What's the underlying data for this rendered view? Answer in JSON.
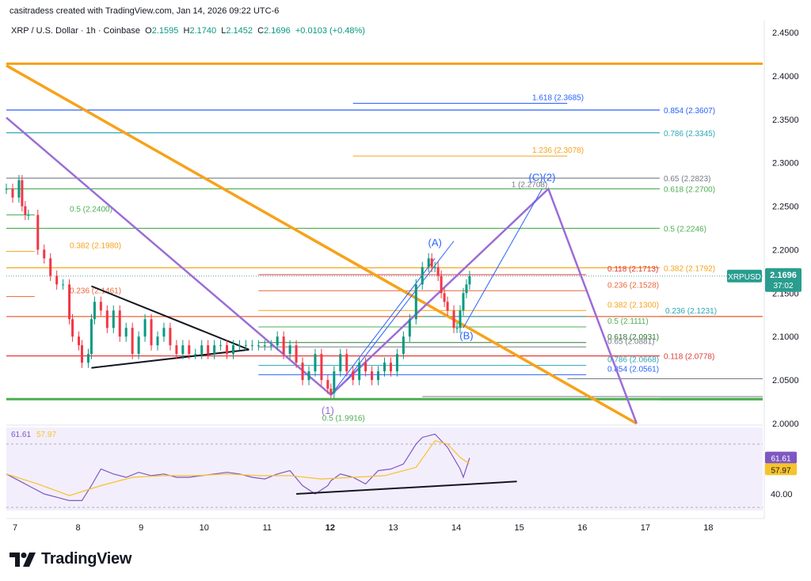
{
  "header": {
    "created_by": "casitradess created with TradingView.com, Jan 14, 2026 09:22 UTC-6"
  },
  "legend": {
    "symbol": "XRP / U.S. Dollar · 1h · Coinbase",
    "o_label": "O",
    "o": "2.1595",
    "h_label": "H",
    "h": "2.1740",
    "l_label": "L",
    "l": "2.1452",
    "c_label": "C",
    "c": "2.1696",
    "change": "+0.0103 (+0.48%)"
  },
  "brand": {
    "name": "TradingView"
  },
  "icons": {
    "logo": "tradingview-logo-icon"
  },
  "colors": {
    "up": "#089981",
    "down": "#f23645",
    "orange": "#f7a21b",
    "purple": "#9c6cd6",
    "blue": "#2962ff",
    "teal": "#2ba7b6",
    "green": "#4caf50",
    "red": "#e03b3b",
    "gray": "#787b86",
    "price_tag": "#2a9d8f",
    "rsi_line": "#7e57c2",
    "rsi_ma": "#f7c32b"
  },
  "price_tag": {
    "label": "XRPUSD",
    "price": "2.1696",
    "countdown": "37:02"
  },
  "chart_data": [
    {
      "type": "line",
      "title": "XRP / U.S. Dollar · 1h · Coinbase",
      "y_axis": {
        "ylim": [
          2.0,
          2.46
        ],
        "ticks": [
          "2.4500",
          "2.4000",
          "2.3500",
          "2.3000",
          "2.2500",
          "2.2000",
          "2.1500",
          "2.1000",
          "2.0500",
          "2.0000"
        ]
      },
      "x_axis": {
        "xlim": [
          7,
          19
        ],
        "ticks": [
          7,
          8,
          9,
          10,
          11,
          12,
          13,
          14,
          15,
          16,
          17,
          18
        ],
        "tick_labels": [
          "7",
          "8",
          "9",
          "10",
          "11",
          "12",
          "13",
          "14",
          "15",
          "16",
          "17",
          "18"
        ]
      },
      "price_series": {
        "x": [
          7.0,
          7.1,
          7.2,
          7.25,
          7.3,
          7.35,
          7.5,
          7.6,
          7.7,
          7.8,
          7.9,
          8.0,
          8.05,
          8.15,
          8.2,
          8.3,
          8.35,
          8.4,
          8.5,
          8.6,
          8.7,
          8.8,
          8.9,
          9.0,
          9.1,
          9.2,
          9.3,
          9.4,
          9.5,
          9.6,
          9.7,
          9.8,
          9.9,
          10.0,
          10.1,
          10.2,
          10.3,
          10.4,
          10.5,
          10.6,
          10.7,
          10.8,
          10.9,
          11.0,
          11.1,
          11.2,
          11.3,
          11.4,
          11.5,
          11.6,
          11.7,
          11.8,
          11.9,
          12.0,
          12.1,
          12.15,
          12.2,
          12.3,
          12.4,
          12.5,
          12.6,
          12.7,
          12.8,
          12.9,
          13.0,
          13.1,
          13.2,
          13.3,
          13.4,
          13.5,
          13.6,
          13.7,
          13.75,
          13.8,
          13.85,
          13.9,
          13.95,
          14.0,
          14.1,
          14.15,
          14.2,
          14.25,
          14.3,
          14.35
        ],
        "y": [
          2.27,
          2.26,
          2.28,
          2.25,
          2.24,
          2.24,
          2.2,
          2.19,
          2.17,
          2.16,
          2.16,
          2.12,
          2.1,
          2.09,
          2.07,
          2.08,
          2.12,
          2.14,
          2.13,
          2.11,
          2.13,
          2.1,
          2.11,
          2.08,
          2.1,
          2.12,
          2.09,
          2.1,
          2.11,
          2.09,
          2.08,
          2.09,
          2.08,
          2.08,
          2.09,
          2.08,
          2.09,
          2.09,
          2.08,
          2.09,
          2.09,
          2.09,
          2.09,
          2.09,
          2.09,
          2.09,
          2.1,
          2.08,
          2.09,
          2.07,
          2.05,
          2.06,
          2.08,
          2.05,
          2.04,
          2.035,
          2.06,
          2.08,
          2.06,
          2.05,
          2.07,
          2.06,
          2.05,
          2.06,
          2.07,
          2.06,
          2.08,
          2.1,
          2.12,
          2.16,
          2.18,
          2.19,
          2.18,
          2.18,
          2.17,
          2.15,
          2.14,
          2.13,
          2.11,
          2.11,
          2.13,
          2.15,
          2.16,
          2.1696
        ]
      },
      "horizontal_lines": [
        {
          "y": 2.414,
          "color": "#f7a21b"
        },
        {
          "y": 2.3607,
          "color": "#2962ff",
          "label": "0.854 (2.3607)"
        },
        {
          "y": 2.3345,
          "color": "#2ba7b6",
          "label": "0.786 (2.3345)"
        },
        {
          "y": 2.2823,
          "color": "#787b86",
          "label": "0.65 (2.2823)"
        },
        {
          "y": 2.27,
          "color": "#4caf50",
          "label": "0.618 (2.2700)"
        },
        {
          "y": 2.2246,
          "color": "#4caf50",
          "label": "0.5 (2.2246)"
        },
        {
          "y": 2.1792,
          "color": "#f7a21b",
          "label": "0.382 (2.1792)"
        },
        {
          "y": 2.1231,
          "color": "#e8663a"
        },
        {
          "y": 2.0778,
          "color": "#e03b3b",
          "label": "0.118 (2.0778)"
        },
        {
          "y": 2.028,
          "color": "#4caf50"
        }
      ],
      "fib_short_lines": [
        {
          "x0": 7.0,
          "x1": 7.45,
          "y": 2.24,
          "color": "#4caf50",
          "label": "0.5 (2.2400)"
        },
        {
          "x0": 7.0,
          "x1": 7.45,
          "y": 2.198,
          "color": "#f7a21b",
          "label": "0.382 (2.1980)"
        },
        {
          "x0": 7.0,
          "x1": 7.45,
          "y": 2.1461,
          "color": "#e8663a",
          "label": "0.236 (2.1461)"
        },
        {
          "x0": 12.5,
          "x1": 15.9,
          "y": 2.3685,
          "color": "#2962ff",
          "label": "1.618 (2.3685)"
        },
        {
          "x0": 12.5,
          "x1": 15.9,
          "y": 2.3078,
          "color": "#f7a21b",
          "label": "1.236 (2.3078)"
        },
        {
          "x0": 11.0,
          "x1": 16.2,
          "y": 2.1713,
          "color": "#e03b3b",
          "label": "0.118 (2.1713)"
        },
        {
          "x0": 11.0,
          "x1": 16.2,
          "y": 2.1528,
          "color": "#e8663a",
          "label": "0.236 (2.1528)"
        },
        {
          "x0": 11.0,
          "x1": 16.2,
          "y": 2.13,
          "color": "#f7a21b",
          "label": "0.382 (2.1300)"
        },
        {
          "x0": 11.0,
          "x1": 16.2,
          "y": 2.1111,
          "color": "#4caf50",
          "label": "0.5 (2.1111)"
        },
        {
          "x0": 11.0,
          "x1": 16.2,
          "y": 2.0931,
          "color": "#2e7d32",
          "label": "0.618 (2.0931)"
        },
        {
          "x0": 11.0,
          "x1": 16.2,
          "y": 2.0881,
          "color": "#787b86",
          "label": "0.65 (2.0881)"
        },
        {
          "x0": 11.0,
          "x1": 16.2,
          "y": 2.0668,
          "color": "#2ba7b6",
          "label": "0.786 (2.0668)"
        },
        {
          "x0": 11.0,
          "x1": 16.2,
          "y": 2.0561,
          "color": "#2962ff",
          "label": "0.854 (2.0561)"
        },
        {
          "x0": 13.6,
          "x1": 16.2,
          "y": 2.1231,
          "color": "#2ba7b6",
          "label": "0.236 (2.1231)"
        },
        {
          "x0": 15.9,
          "x1": 19.0,
          "y": 2.0515,
          "color": "#787b86"
        },
        {
          "x0": 13.6,
          "x1": 19.0,
          "y": 2.031,
          "color": "#787b86"
        }
      ],
      "orange_trend": {
        "x": [
          7.0,
          17.0
        ],
        "y": [
          2.412,
          2.0
        ]
      },
      "purple_channel": {
        "x": [
          7.0,
          12.15
        ],
        "y": [
          2.352,
          2.033
        ]
      },
      "purple_projection": {
        "x": [
          12.15,
          15.6,
          17.0
        ],
        "y": [
          2.033,
          2.27,
          2.0
        ]
      },
      "blue_channel": [
        {
          "x": [
            12.15,
            13.8
          ],
          "y": [
            2.033,
            2.19
          ]
        },
        {
          "x": [
            12.4,
            14.1
          ],
          "y": [
            2.05,
            2.21
          ]
        },
        {
          "x": [
            14.25,
            15.5
          ],
          "y": [
            2.11,
            2.27
          ]
        }
      ],
      "triangle": {
        "top": {
          "x": [
            8.35,
            10.85
          ],
          "y": [
            2.158,
            2.085
          ]
        },
        "bottom": {
          "x": [
            8.35,
            10.85
          ],
          "y": [
            2.064,
            2.085
          ]
        }
      },
      "annotations": [
        {
          "text": "(1)",
          "x": 12.1,
          "y": 2.011,
          "color": "#9c6cd6"
        },
        {
          "text": "0.5 (1.9916)",
          "x": 12.35,
          "y": 2.003,
          "color": "#4caf50"
        },
        {
          "text": "(A)",
          "x": 13.8,
          "y": 2.204,
          "color": "#2962ff"
        },
        {
          "text": "(B)",
          "x": 14.3,
          "y": 2.097,
          "color": "#2962ff"
        },
        {
          "text": "(C)(2)",
          "x": 15.5,
          "y": 2.279,
          "color": "#2962ff"
        },
        {
          "text": "1 (2.2708)",
          "x": 15.3,
          "y": 2.272,
          "color": "#787b86"
        }
      ]
    },
    {
      "type": "line",
      "title": "RSI",
      "series": [
        {
          "name": "61.61",
          "color": "#7e57c2",
          "value_label": "61.61"
        },
        {
          "name": "57.97",
          "color": "#f7c32b",
          "value_label": "57.97"
        }
      ],
      "ylim": [
        30,
        80
      ],
      "y_tick": "40.00",
      "rsi": {
        "x": [
          7.0,
          7.2,
          7.4,
          7.6,
          7.8,
          8.0,
          8.2,
          8.35,
          8.5,
          8.7,
          8.9,
          9.1,
          9.3,
          9.5,
          9.7,
          9.9,
          10.1,
          10.3,
          10.5,
          10.7,
          10.9,
          11.1,
          11.3,
          11.5,
          11.7,
          11.9,
          12.1,
          12.15,
          12.3,
          12.5,
          12.7,
          12.9,
          13.1,
          13.3,
          13.5,
          13.6,
          13.8,
          14.0,
          14.2,
          14.25,
          14.35
        ],
        "y": [
          52,
          48,
          44,
          40,
          38,
          36,
          36,
          45,
          55,
          52,
          50,
          53,
          51,
          52,
          50,
          50,
          51,
          52,
          53,
          52,
          50,
          49,
          52,
          54,
          45,
          40,
          45,
          48,
          52,
          50,
          46,
          54,
          55,
          58,
          70,
          74,
          76,
          68,
          55,
          50,
          61.61
        ]
      },
      "rsi_ma": {
        "x": [
          7.0,
          7.5,
          8.0,
          8.5,
          9.0,
          9.5,
          10.0,
          10.5,
          11.0,
          11.5,
          12.0,
          12.5,
          13.0,
          13.5,
          13.8,
          14.0,
          14.2,
          14.35
        ],
        "y": [
          52,
          46,
          39,
          45,
          50,
          51,
          51,
          52,
          51,
          51,
          49,
          50,
          51,
          56,
          72,
          70,
          62,
          57.97
        ]
      },
      "trendlines": [
        {
          "x": [
            11.6,
            15.1
          ],
          "y": [
            40,
            47.5
          ],
          "color": "#131722"
        }
      ]
    }
  ]
}
